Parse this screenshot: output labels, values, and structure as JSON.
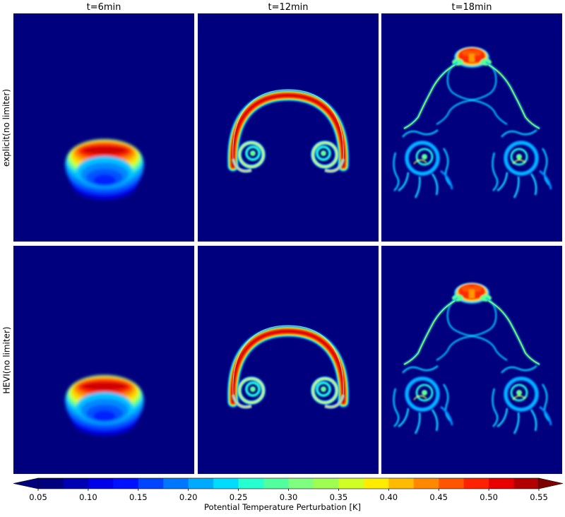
{
  "chart_data": {
    "type": "heatmap",
    "columns": [
      "t=6min",
      "t=12min",
      "t=18min"
    ],
    "rows": [
      "explicit(no limiter)",
      "HEVI(no limiter)"
    ],
    "colorbar": {
      "label": "Potential Temperature Perturbation [K]",
      "min": 0.05,
      "max": 0.55,
      "step": 0.025,
      "ticks": [
        "0.05",
        "0.10",
        "0.15",
        "0.20",
        "0.25",
        "0.30",
        "0.35",
        "0.40",
        "0.45",
        "0.50",
        "0.55"
      ],
      "extend": "both",
      "colors": [
        "#00007f",
        "#0000b2",
        "#0000e8",
        "#0011ff",
        "#0044ff",
        "#0077ff",
        "#00aaff",
        "#00dcfe",
        "#26ffd0",
        "#52ff9e",
        "#7fff7f",
        "#9eff52",
        "#d0ff26",
        "#feed00",
        "#ffbb00",
        "#ff8800",
        "#ff5500",
        "#ff2200",
        "#e80000",
        "#b20000"
      ],
      "under_color": "#00007f",
      "over_color": "#7f0000"
    },
    "background_color": "#00007f"
  }
}
